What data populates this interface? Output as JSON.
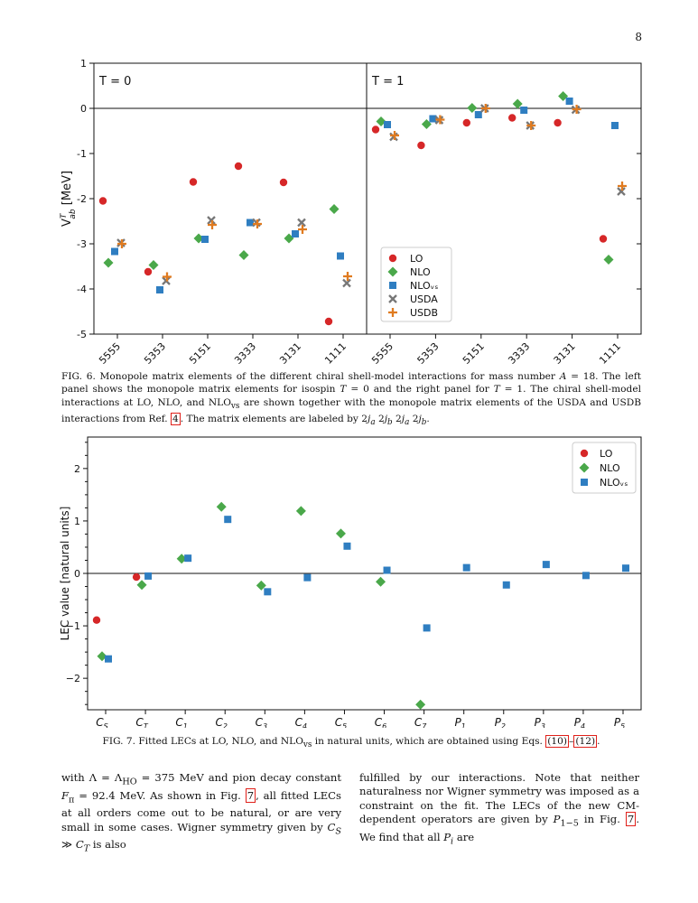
{
  "page_number": "8",
  "figure6": {
    "caption": "FIG. 6. Monopole matrix elements of the different chiral shell-model interactions for mass number A = 18. The left panel shows the monopole matrix elements for isospin T = 0 and the right panel for T = 1. The chiral shell-model interactions at LO, NLO, and NLOᵥₛ are shown together with the monopole matrix elements of the USDA and USDB interactions from Ref. [4]. The matrix elements are labeled by 2jₐ 2jᵦ 2jₐ 2jᵦ.",
    "ylabel": "V_ab^T [MeV]",
    "panel_labels": [
      "T = 0",
      "T = 1"
    ],
    "yticks": [
      "1",
      "0",
      "-1",
      "-2",
      "-3",
      "-4",
      "-5"
    ],
    "xticks": [
      "5555",
      "5353",
      "5151",
      "3333",
      "3131",
      "1111"
    ],
    "legend": [
      "LO",
      "NLO",
      "NLOᵥₛ",
      "USDA",
      "USDB"
    ]
  },
  "figure7": {
    "caption": "FIG. 7. Fitted LECs at LO, NLO, and NLOᵥₛ in natural units, which are obtained using Eqs. (10)–(12).",
    "ylabel": "LEC value [natural units]",
    "yticks": [
      "2",
      "1",
      "0",
      "−1",
      "−2"
    ],
    "xticks": [
      "C_S",
      "C_T",
      "C_1",
      "C_2",
      "C_3",
      "C_4",
      "C_5",
      "C_6",
      "C_7",
      "P_1",
      "P_2",
      "P_3",
      "P_4",
      "P_5"
    ],
    "legend": [
      "LO",
      "NLO",
      "NLOᵥₛ"
    ]
  },
  "body": {
    "left": "with Λ = Λₕₒ = 375 MeV and pion decay constant Fπ = 92.4 MeV. As shown in Fig. 7, all fitted LECs at all orders come out to be natural, or are very small in some cases. Wigner symmetry given by C_S ≫ C_T is also",
    "right": "fulfilled by our interactions. Note that neither naturalness nor Wigner symmetry was imposed as a constraint on the fit. The LECs of the new CM-dependent operators are given by P₁₋₅ in Fig. 7. We find that all Pᵢ are"
  },
  "colors": {
    "LO": "#d62728",
    "NLO": "#4aa84a",
    "NLOvs": "#2f7ec1",
    "USDA": "#777777",
    "USDB": "#e07b20"
  },
  "chart_data": [
    {
      "type": "scatter",
      "panel": "T = 0",
      "categories": [
        "5555",
        "5353",
        "5151",
        "3333",
        "3131",
        "1111"
      ],
      "ylim": [
        -5,
        1
      ],
      "series": [
        {
          "name": "LO",
          "values": [
            -2.05,
            -3.62,
            -1.63,
            -1.28,
            -1.64,
            -4.72
          ]
        },
        {
          "name": "NLO",
          "values": [
            -3.42,
            -3.47,
            -2.88,
            -3.25,
            -2.88,
            -2.23
          ]
        },
        {
          "name": "NLOᵥₛ",
          "values": [
            -3.17,
            -4.02,
            -2.9,
            -2.53,
            -2.78,
            -3.27
          ]
        },
        {
          "name": "USDA",
          "values": [
            -2.98,
            -3.82,
            -2.48,
            -2.53,
            -2.53,
            -3.87
          ]
        },
        {
          "name": "USDB",
          "values": [
            -3.0,
            -3.73,
            -2.58,
            -2.56,
            -2.68,
            -3.72
          ]
        }
      ]
    },
    {
      "type": "scatter",
      "panel": "T = 1",
      "categories": [
        "5555",
        "5353",
        "5151",
        "3333",
        "3131",
        "1111"
      ],
      "ylim": [
        -5,
        1
      ],
      "series": [
        {
          "name": "LO",
          "values": [
            -0.47,
            -0.82,
            -0.32,
            -0.21,
            -0.32,
            -2.89
          ]
        },
        {
          "name": "NLO",
          "values": [
            -0.29,
            -0.35,
            0.01,
            0.1,
            0.27,
            -3.35
          ]
        },
        {
          "name": "NLOᵥₛ",
          "values": [
            -0.36,
            -0.23,
            -0.14,
            -0.04,
            0.16,
            -0.38
          ]
        },
        {
          "name": "USDA",
          "values": [
            -0.63,
            -0.26,
            0.0,
            -0.38,
            -0.03,
            -1.84
          ]
        },
        {
          "name": "USDB",
          "values": [
            -0.6,
            -0.25,
            0.0,
            -0.38,
            -0.02,
            -1.72
          ]
        }
      ]
    },
    {
      "type": "scatter",
      "categories": [
        "C_S",
        "C_T",
        "C_1",
        "C_2",
        "C_3",
        "C_4",
        "C_5",
        "C_6",
        "C_7",
        "P_1",
        "P_2",
        "P_3",
        "P_4",
        "P_5"
      ],
      "ylim": [
        -2.6,
        2.6
      ],
      "series": [
        {
          "name": "LO",
          "values": [
            -0.89,
            -0.07,
            null,
            null,
            null,
            null,
            null,
            null,
            null,
            null,
            null,
            null,
            null,
            null
          ]
        },
        {
          "name": "NLO",
          "values": [
            -1.58,
            -0.22,
            0.28,
            1.27,
            -0.23,
            1.19,
            0.76,
            -0.16,
            -2.5,
            null,
            null,
            null,
            null,
            null
          ]
        },
        {
          "name": "NLOᵥₛ",
          "values": [
            -1.63,
            -0.05,
            0.29,
            1.03,
            -0.35,
            -0.08,
            0.52,
            0.06,
            -1.04,
            0.11,
            -0.22,
            0.17,
            -0.04,
            0.1
          ]
        }
      ]
    }
  ]
}
